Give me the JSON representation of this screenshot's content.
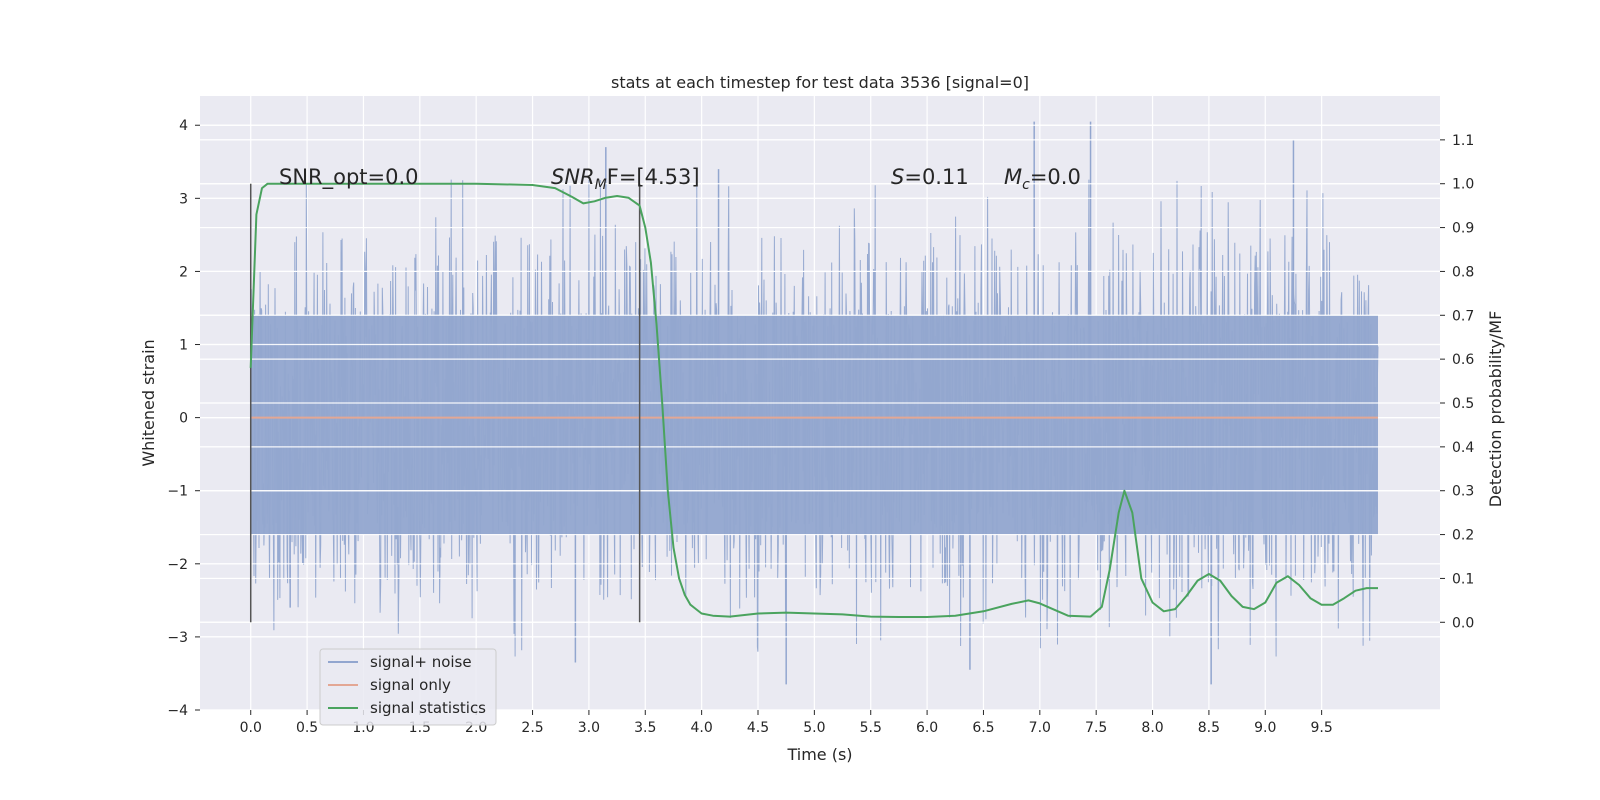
{
  "chart_data": {
    "type": "line",
    "title": "stats at each timestep for test data 3536 [signal=0]",
    "xlabel": "Time (s)",
    "ylabel_left": "Whitened strain",
    "ylabel_right": "Detection probability/MF",
    "xlim": [
      -0.45,
      10.55
    ],
    "ylim_left": [
      -4,
      4.4
    ],
    "ylim_right": [
      -0.2,
      1.2
    ],
    "x_ticks": [
      "0.0",
      "0.5",
      "1.0",
      "1.5",
      "2.0",
      "2.5",
      "3.0",
      "3.5",
      "4.0",
      "4.5",
      "5.0",
      "5.5",
      "6.0",
      "6.5",
      "7.0",
      "7.5",
      "8.0",
      "8.5",
      "9.0",
      "9.5"
    ],
    "y_left_ticks": [
      "−4",
      "−3",
      "−2",
      "−1",
      "0",
      "1",
      "2",
      "3",
      "4"
    ],
    "y_right_ticks": [
      "0.0",
      "0.1",
      "0.2",
      "0.3",
      "0.4",
      "0.5",
      "0.6",
      "0.7",
      "0.8",
      "0.9",
      "1.0",
      "1.1"
    ],
    "grid": true,
    "legend_position": "lower-left",
    "annotations": [
      {
        "name": "snr-opt",
        "text": "SNR_opt=0.0"
      },
      {
        "name": "snr-mf",
        "base": "SNR",
        "sub": "M",
        "tail": "F=[4.53]"
      },
      {
        "name": "s-value",
        "base": "S",
        "tail": "=0.11"
      },
      {
        "name": "mc-value",
        "base": "M",
        "sub": "c",
        "tail": "=0.0"
      }
    ],
    "markers": [
      {
        "name": "start-marker-line",
        "x": 0.0,
        "y_range": [
          -2.8,
          3.2
        ]
      },
      {
        "name": "mf-marker-line",
        "x": 3.45,
        "y_range": [
          -2.8,
          3.2
        ]
      }
    ],
    "series": [
      {
        "name": "signal+ noise",
        "color": "#92a6cf",
        "x_range": [
          0.0,
          10.0
        ],
        "core_band": [
          -1.6,
          1.4
        ],
        "max_peak": 4.05,
        "min_trough": -3.65,
        "description_values": "whitened noise strain, mostly within ±2.5"
      },
      {
        "name": "signal only",
        "color": "#e3a794",
        "x": [
          0.0,
          10.0
        ],
        "y": [
          0.0,
          0.0
        ]
      },
      {
        "name": "signal statistics",
        "color": "#4aa35e",
        "axis": "right",
        "x": [
          0.0,
          0.05,
          0.1,
          0.15,
          0.2,
          0.3,
          0.5,
          1.0,
          1.5,
          2.0,
          2.5,
          2.7,
          2.85,
          2.95,
          3.05,
          3.15,
          3.25,
          3.35,
          3.45,
          3.5,
          3.55,
          3.6,
          3.65,
          3.7,
          3.75,
          3.8,
          3.85,
          3.9,
          3.95,
          4.0,
          4.1,
          4.25,
          4.5,
          4.75,
          5.0,
          5.25,
          5.5,
          5.75,
          6.0,
          6.25,
          6.5,
          6.75,
          6.9,
          7.0,
          7.25,
          7.45,
          7.55,
          7.62,
          7.7,
          7.75,
          7.82,
          7.9,
          8.0,
          8.1,
          8.2,
          8.3,
          8.4,
          8.5,
          8.6,
          8.7,
          8.8,
          8.9,
          9.0,
          9.1,
          9.2,
          9.3,
          9.4,
          9.5,
          9.6,
          9.7,
          9.8,
          9.9,
          10.0
        ],
        "y": [
          0.58,
          0.93,
          0.99,
          1.0,
          1.0,
          1.0,
          1.0,
          1.0,
          1.0,
          1.0,
          0.997,
          0.99,
          0.97,
          0.955,
          0.96,
          0.968,
          0.972,
          0.968,
          0.95,
          0.9,
          0.82,
          0.68,
          0.5,
          0.3,
          0.17,
          0.1,
          0.063,
          0.04,
          0.03,
          0.02,
          0.015,
          0.013,
          0.02,
          0.022,
          0.02,
          0.018,
          0.013,
          0.012,
          0.012,
          0.015,
          0.025,
          0.042,
          0.05,
          0.043,
          0.015,
          0.013,
          0.035,
          0.12,
          0.25,
          0.3,
          0.25,
          0.1,
          0.045,
          0.025,
          0.03,
          0.06,
          0.095,
          0.11,
          0.095,
          0.06,
          0.035,
          0.03,
          0.045,
          0.09,
          0.105,
          0.085,
          0.055,
          0.04,
          0.04,
          0.055,
          0.072,
          0.078,
          0.078
        ]
      }
    ]
  }
}
